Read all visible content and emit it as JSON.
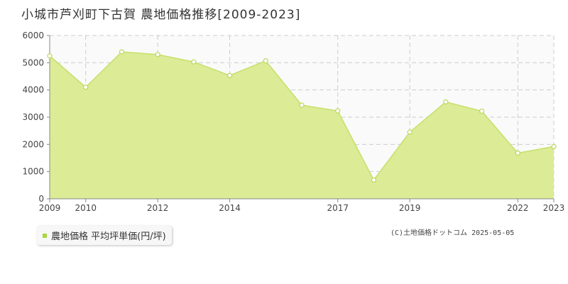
{
  "title": "小城市芦刈町下古賀 農地価格推移[2009-2023]",
  "legend_label": "農地価格 平均坪単価(円/坪)",
  "copyright": "(C)土地価格ドットコム 2025-05-05",
  "colors": {
    "fill": "#dceb96",
    "line": "#c5e06a",
    "marker_fill": "#ffffff",
    "marker_stroke": "#b8d85a",
    "grid": "#cccccc",
    "axis": "#888888",
    "legend_swatch": "#a8d63f"
  },
  "chart_data": {
    "type": "area",
    "x": [
      2009,
      2010,
      2011,
      2012,
      2013,
      2014,
      2015,
      2016,
      2017,
      2018,
      2019,
      2020,
      2021,
      2022,
      2023
    ],
    "series": [
      {
        "name": "農地価格 平均坪単価(円/坪)",
        "values": [
          5250,
          4100,
          5400,
          5300,
          5030,
          4530,
          5070,
          3440,
          3230,
          690,
          2450,
          3560,
          3220,
          1680,
          1920
        ]
      }
    ],
    "x_tick_labels": [
      "2009",
      "2010",
      "2012",
      "2014",
      "2017",
      "2019",
      "2022",
      "2023"
    ],
    "x_tick_values": [
      2009,
      2010,
      2012,
      2014,
      2017,
      2019,
      2022,
      2023
    ],
    "y_ticks": [
      0,
      1000,
      2000,
      3000,
      4000,
      5000,
      6000
    ],
    "ylim": [
      0,
      6000
    ],
    "xlim": [
      2009,
      2023
    ],
    "grid": true,
    "xlabel": "",
    "ylabel": ""
  }
}
